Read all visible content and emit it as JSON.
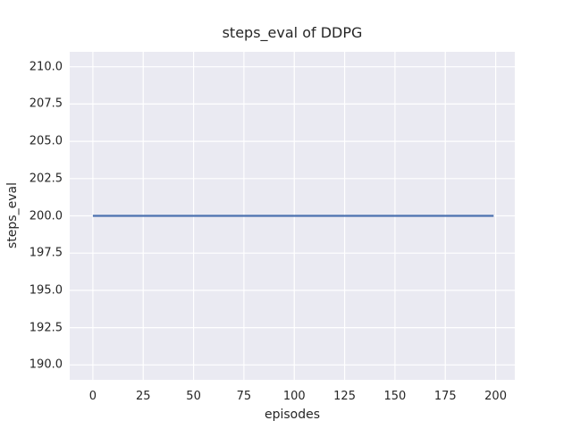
{
  "chart_data": {
    "type": "line",
    "title": "steps_eval of DDPG",
    "xlabel": "episodes",
    "ylabel": "steps_eval",
    "x_ticks": {
      "values": [
        0,
        25,
        50,
        75,
        100,
        125,
        150,
        175,
        200
      ],
      "labels": [
        "0",
        "25",
        "50",
        "75",
        "100",
        "125",
        "150",
        "175",
        "200"
      ]
    },
    "y_ticks": {
      "values": [
        190,
        192.5,
        195,
        197.5,
        200,
        202.5,
        205,
        207.5,
        210
      ],
      "labels": [
        "190.0",
        "192.5",
        "195.0",
        "197.5",
        "200.0",
        "202.5",
        "205.0",
        "207.5",
        "210.0"
      ]
    },
    "xlim": [
      -11.5,
      209.5
    ],
    "ylim": [
      189,
      211
    ],
    "grid": true,
    "legend": "none",
    "plot_background": "#eaeaf2",
    "grid_color": "#ffffff",
    "text_color": "#262626",
    "series": [
      {
        "name": "DDPG",
        "color": "#4c72b0",
        "x": [
          0,
          199
        ],
        "y": [
          200,
          200
        ]
      }
    ]
  }
}
